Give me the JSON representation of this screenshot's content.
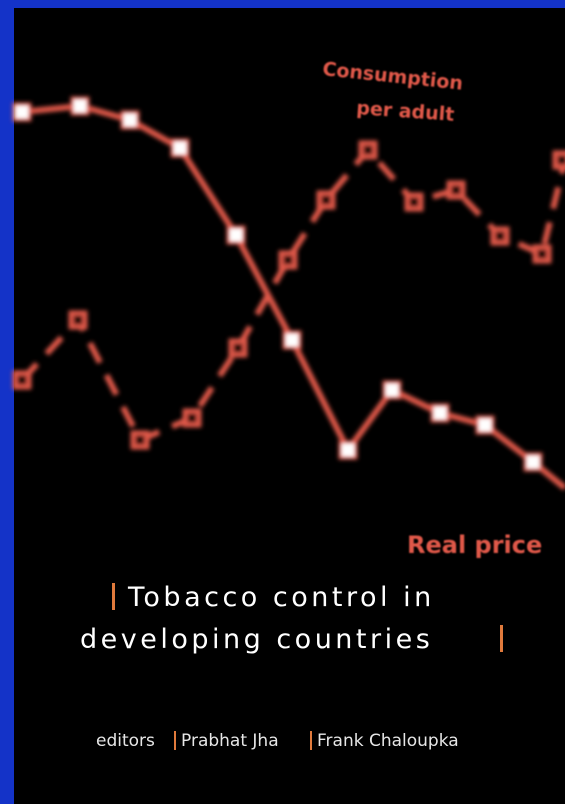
{
  "cover": {
    "labels": {
      "consumption": [
        "Consumption",
        "per adult"
      ],
      "price": "Real price"
    },
    "title": [
      "Tobacco control in",
      "developing countries"
    ],
    "editors_label": "editors",
    "editors": [
      "Prabhat Jha",
      "Frank Chaloupka"
    ]
  }
}
